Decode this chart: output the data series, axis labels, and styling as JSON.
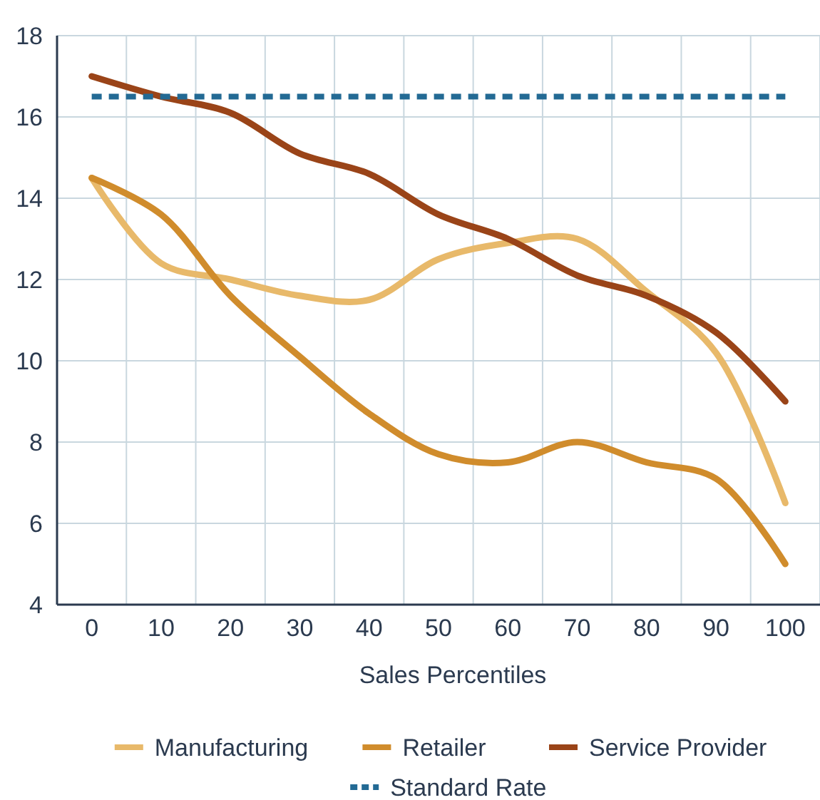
{
  "chart_data": {
    "type": "line",
    "xlabel": "Sales Percentiles",
    "x": [
      0,
      10,
      20,
      30,
      40,
      50,
      60,
      70,
      80,
      90,
      100
    ],
    "xlim": [
      -5,
      105
    ],
    "xticks": [
      0,
      10,
      20,
      30,
      40,
      50,
      60,
      70,
      80,
      90,
      100
    ],
    "ylim": [
      4,
      18
    ],
    "yticks": [
      4,
      6,
      8,
      10,
      12,
      14,
      16,
      18
    ],
    "grid": true,
    "legend": "bottom",
    "line_style": "solid",
    "series": [
      {
        "name": "Manufacturing",
        "color": "#e8b96a",
        "values": [
          14.5,
          12.4,
          12.0,
          11.6,
          11.5,
          12.5,
          12.9,
          13.0,
          11.7,
          10.2,
          6.5
        ]
      },
      {
        "name": "Retailer",
        "color": "#d08c2c",
        "values": [
          14.5,
          13.6,
          11.6,
          10.1,
          8.7,
          7.7,
          7.5,
          8.0,
          7.5,
          7.1,
          5.0
        ]
      },
      {
        "name": "Service Provider",
        "color": "#9a4418",
        "values": [
          17.0,
          16.5,
          16.1,
          15.1,
          14.6,
          13.6,
          13.0,
          12.1,
          11.6,
          10.7,
          9.0
        ]
      },
      {
        "name": "Standard Rate",
        "color": "#236a94",
        "x": [
          0,
          100
        ],
        "values": [
          16.5,
          16.5
        ],
        "line_style": "dashed"
      }
    ]
  }
}
